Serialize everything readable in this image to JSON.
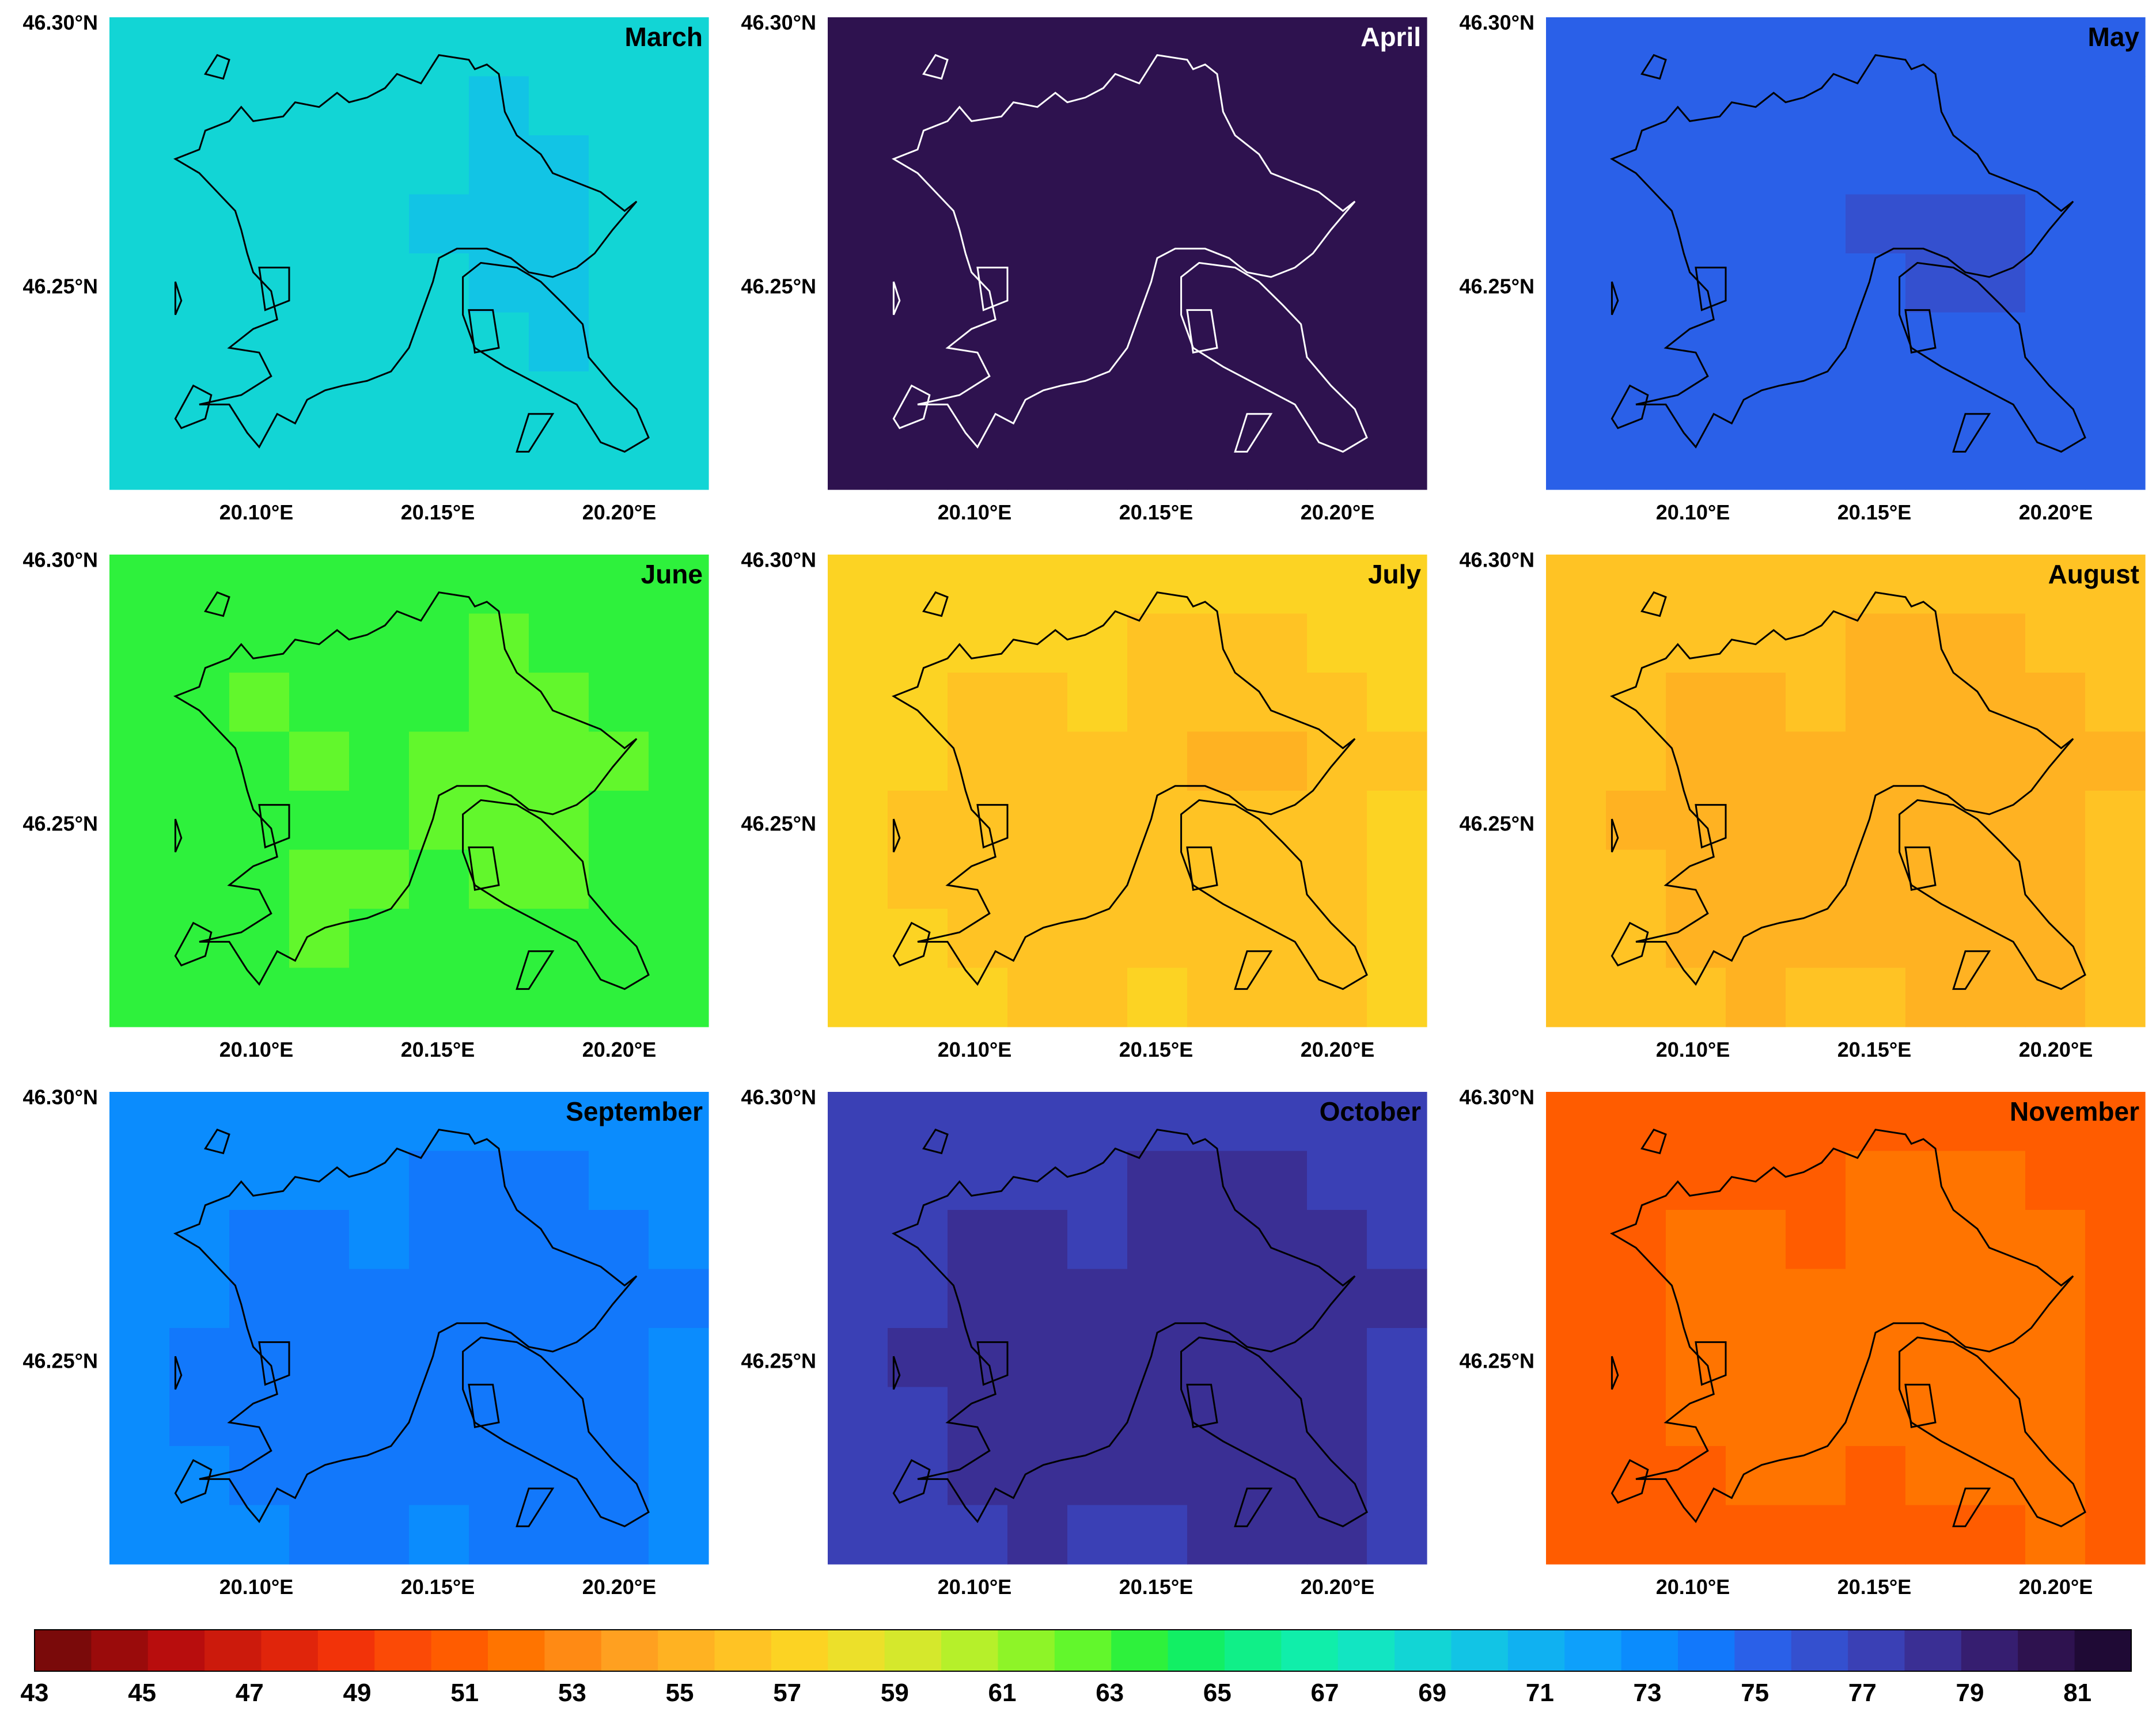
{
  "figure": {
    "panels": [
      {
        "title": "March",
        "base": 68.5,
        "outline": "#000000",
        "title_color": "#000000"
      },
      {
        "title": "April",
        "base": 80.0,
        "outline": "#ffffff",
        "title_color": "#ffffff"
      },
      {
        "title": "May",
        "base": 75.0,
        "outline": "#000000",
        "title_color": "#000000"
      },
      {
        "title": "June",
        "base": 64.0,
        "outline": "#000000",
        "title_color": "#000000"
      },
      {
        "title": "July",
        "base": 57.0,
        "outline": "#000000",
        "title_color": "#000000"
      },
      {
        "title": "August",
        "base": 56.0,
        "outline": "#000000",
        "title_color": "#000000"
      },
      {
        "title": "September",
        "base": 73.5,
        "outline": "#000000",
        "title_color": "#000000"
      },
      {
        "title": "October",
        "base": 77.5,
        "outline": "#000000",
        "title_color": "#000000"
      },
      {
        "title": "November",
        "base": 51.0,
        "outline": "#000000",
        "title_color": "#000000"
      }
    ],
    "axes": {
      "lat_ticks": [
        "46.30°N",
        "46.25°N"
      ],
      "lon_ticks": [
        "20.10°E",
        "20.15°E",
        "20.20°E"
      ]
    }
  },
  "chart_data": {
    "type": "heatmap",
    "colorbar": {
      "min": 43,
      "max": 82,
      "step": 1,
      "tick_labels": [
        "43",
        "45",
        "47",
        "49",
        "51",
        "53",
        "55",
        "57",
        "59",
        "61",
        "63",
        "65",
        "67",
        "69",
        "71",
        "73",
        "75",
        "77",
        "79",
        "81"
      ]
    },
    "panel_values_approx": {
      "March": 68.5,
      "April": 80,
      "May": 75,
      "June": 64,
      "July": 57,
      "August": 56,
      "September": 73.5,
      "October": 77.5,
      "November": 51
    }
  }
}
